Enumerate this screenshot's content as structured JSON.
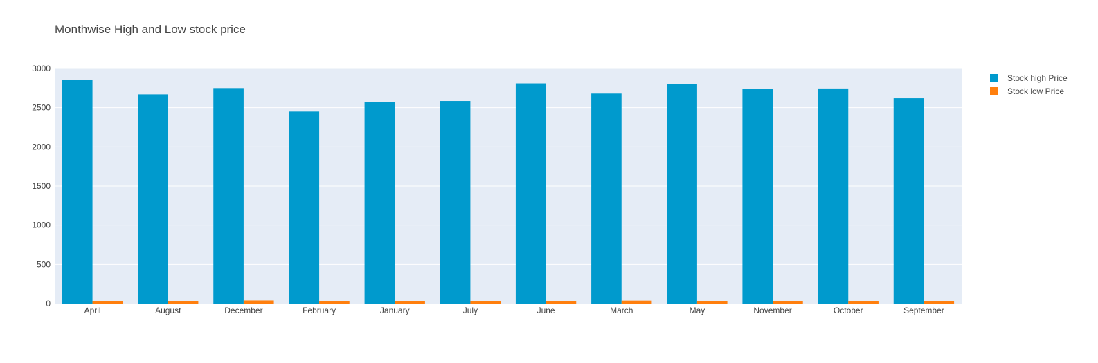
{
  "chart_data": {
    "type": "bar",
    "title": "Monthwise High and Low stock price",
    "xlabel": "",
    "ylabel": "",
    "categories": [
      "April",
      "August",
      "December",
      "February",
      "January",
      "July",
      "June",
      "March",
      "May",
      "November",
      "October",
      "September"
    ],
    "series": [
      {
        "name": "Stock high Price",
        "color": "#009acd",
        "values": [
          2850,
          2670,
          2750,
          2450,
          2575,
          2585,
          2810,
          2680,
          2800,
          2740,
          2745,
          2620
        ]
      },
      {
        "name": "Stock low Price",
        "color": "#ff7f0e",
        "values": [
          35,
          30,
          40,
          35,
          30,
          30,
          35,
          38,
          33,
          35,
          28,
          28
        ]
      }
    ],
    "ylim": [
      0,
      3000
    ],
    "yticks": [
      0,
      500,
      1000,
      1500,
      2000,
      2500,
      3000
    ],
    "grid": true,
    "legend": "top-right",
    "plot_background": "#e5ecf6"
  }
}
